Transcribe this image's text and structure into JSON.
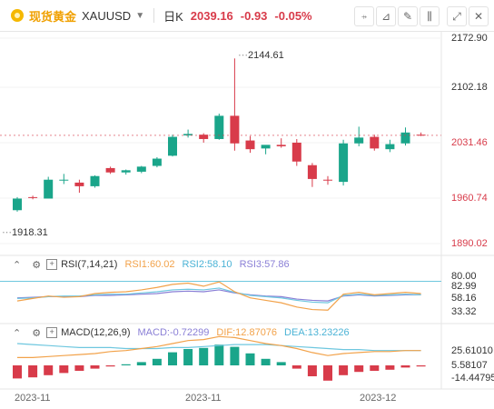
{
  "header": {
    "name": "现货黄金",
    "symbol": "XAUUSD",
    "interval": "日K",
    "price": "2039.16",
    "change": "-0.93",
    "change_pct": "-0.05%"
  },
  "toolbar": {
    "buttons": [
      "chart-icon",
      "draw-icon",
      "pencil-icon",
      "candle-icon",
      "expand-icon",
      "close-icon"
    ]
  },
  "price_axis": [
    "2172.90",
    "2102.18",
    "2031.46",
    "1960.74",
    "1890.02"
  ],
  "annotations": {
    "high": "2144.61",
    "low": "1918.31"
  },
  "rsi": {
    "title": "RSI(7,14,21)",
    "rsi1": "RSI1:60.02",
    "rsi2": "RSI2:58.10",
    "rsi3": "RSI3:57.86",
    "axis": [
      "80.00",
      "82.99",
      "58.16",
      "33.32"
    ]
  },
  "macd": {
    "title": "MACD(12,26,9)",
    "macd": "MACD:-0.72299",
    "dif": "DIF:12.87076",
    "dea": "DEA:13.23226",
    "axis": [
      "25.61010",
      "5.58107",
      "-14.44795"
    ]
  },
  "x_labels": [
    "2023-11",
    "2023-11",
    "2023-12"
  ],
  "colors": {
    "up": "#1aa58a",
    "down": "#d83b4a",
    "rsi1": "#f2a24a",
    "rsi2": "#6ec7df",
    "rsi3": "#8a7fd6",
    "macd_dif": "#f2a24a",
    "macd_dea": "#6ec7df"
  },
  "chart_data": {
    "type": "candlestick",
    "candles": [
      {
        "o": 1936,
        "h": 1954,
        "l": 1934,
        "c": 1952
      },
      {
        "o": 1954,
        "h": 1956,
        "l": 1951,
        "c": 1953
      },
      {
        "o": 1952,
        "h": 1982,
        "l": 1952,
        "c": 1978
      },
      {
        "o": 1977,
        "h": 1986,
        "l": 1972,
        "c": 1978
      },
      {
        "o": 1974,
        "h": 1978,
        "l": 1960,
        "c": 1969
      },
      {
        "o": 1969,
        "h": 1984,
        "l": 1967,
        "c": 1983
      },
      {
        "o": 1994,
        "h": 1996,
        "l": 1986,
        "c": 1988
      },
      {
        "o": 1988,
        "h": 1992,
        "l": 1985,
        "c": 1991
      },
      {
        "o": 1989,
        "h": 1997,
        "l": 1987,
        "c": 1996
      },
      {
        "o": 1997,
        "h": 2009,
        "l": 1995,
        "c": 2007
      },
      {
        "o": 2011,
        "h": 2040,
        "l": 2010,
        "c": 2037
      },
      {
        "o": 2039,
        "h": 2047,
        "l": 2036,
        "c": 2041
      },
      {
        "o": 2040,
        "h": 2042,
        "l": 2029,
        "c": 2034
      },
      {
        "o": 2034,
        "h": 2069,
        "l": 2033,
        "c": 2066
      },
      {
        "o": 2066,
        "h": 2145,
        "l": 2018,
        "c": 2028
      },
      {
        "o": 2032,
        "h": 2038,
        "l": 2015,
        "c": 2020
      },
      {
        "o": 2021,
        "h": 2024,
        "l": 2013,
        "c": 2026
      },
      {
        "o": 2026,
        "h": 2035,
        "l": 2022,
        "c": 2024
      },
      {
        "o": 2029,
        "h": 2034,
        "l": 1997,
        "c": 2003
      },
      {
        "o": 1998,
        "h": 2001,
        "l": 1968,
        "c": 1979
      },
      {
        "o": 1978,
        "h": 1983,
        "l": 1971,
        "c": 1977
      },
      {
        "o": 1975,
        "h": 2033,
        "l": 1970,
        "c": 2028
      },
      {
        "o": 2028,
        "h": 2051,
        "l": 2024,
        "c": 2036
      },
      {
        "o": 2037,
        "h": 2040,
        "l": 2018,
        "c": 2021
      },
      {
        "o": 2020,
        "h": 2033,
        "l": 2016,
        "c": 2027
      },
      {
        "o": 2028,
        "h": 2050,
        "l": 2025,
        "c": 2043
      },
      {
        "o": 2040,
        "h": 2043,
        "l": 2038,
        "c": 2039
      }
    ],
    "rsi1": [
      48,
      52,
      56,
      54,
      55,
      60,
      62,
      63,
      66,
      70,
      75,
      77,
      72,
      79,
      63,
      53,
      49,
      45,
      38,
      34,
      33,
      59,
      62,
      58,
      60,
      62,
      60
    ],
    "rsi2": [
      52,
      53,
      55,
      56,
      56,
      58,
      59,
      59,
      61,
      63,
      66,
      67,
      66,
      69,
      62,
      57,
      55,
      53,
      49,
      46,
      45,
      57,
      59,
      57,
      58,
      59,
      58
    ],
    "rsi3": [
      53,
      54,
      55,
      55,
      55,
      57,
      57,
      58,
      59,
      60,
      63,
      64,
      63,
      66,
      61,
      58,
      56,
      55,
      51,
      49,
      48,
      56,
      58,
      56,
      57,
      58,
      58
    ],
    "macd_hist": [
      -12,
      -11,
      -9,
      -7,
      -5,
      -3,
      -1,
      1,
      3,
      6,
      12,
      15,
      16,
      19,
      17,
      11,
      6,
      3,
      -3,
      -10,
      -14,
      -9,
      -6,
      -5,
      -4,
      -2,
      -1
    ],
    "dif": [
      6,
      6,
      7,
      8,
      9,
      10,
      12,
      13,
      15,
      17,
      20,
      23,
      24,
      27,
      26,
      23,
      20,
      18,
      15,
      11,
      8,
      10,
      11,
      12,
      12,
      13,
      13
    ],
    "dea": [
      20,
      19,
      18,
      17,
      16,
      16,
      16,
      15,
      15,
      15,
      16,
      16,
      17,
      18,
      19,
      19,
      19,
      18,
      17,
      16,
      15,
      14,
      14,
      13,
      13,
      13,
      13
    ]
  }
}
